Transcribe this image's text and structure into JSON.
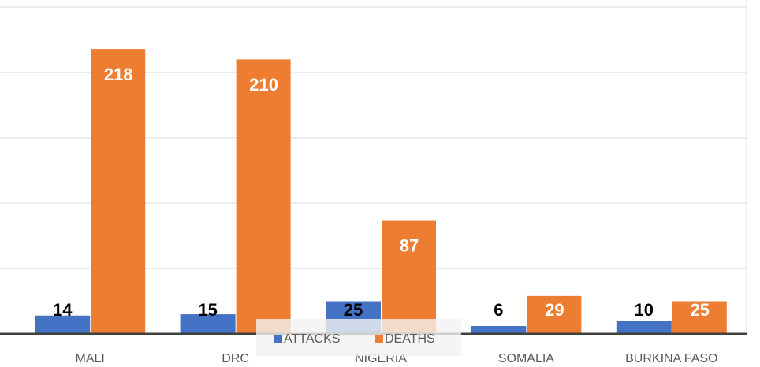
{
  "chart_data": {
    "type": "bar",
    "categories": [
      "MALI",
      "DRC",
      "NIGERIA",
      "SOMALIA",
      "BURKINA FASO"
    ],
    "series": [
      {
        "name": "ATTACKS",
        "color": "#4472c4",
        "values": [
          14,
          15,
          25,
          6,
          10
        ]
      },
      {
        "name": "DEATHS",
        "color": "#ed7d31",
        "values": [
          218,
          210,
          87,
          29,
          25
        ]
      }
    ],
    "ylim": [
      0,
      250
    ],
    "yticks": [
      0,
      50,
      100,
      150,
      200,
      250
    ],
    "grid": true,
    "legend": "bottom"
  }
}
